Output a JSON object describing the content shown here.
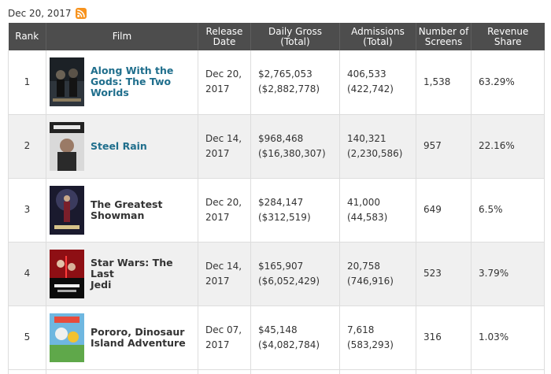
{
  "header": {
    "date": "Dec 20, 2017"
  },
  "icons": {
    "rss": "rss-feed-icon"
  },
  "colors": {
    "header_bg": "#4d4d4d",
    "link": "#1f6e8c",
    "rss": "#f7931e",
    "alt_row": "#f0f0f0"
  },
  "table": {
    "columns": [
      "Rank",
      "Film",
      "Release Date",
      "Daily Gross (Total)",
      "Admissions (Total)",
      "Number of Screens",
      "Revenue Share"
    ],
    "column_lines": {
      "release": [
        "Release",
        "Date"
      ],
      "gross": [
        "Daily Gross",
        "(Total)"
      ],
      "admissions": [
        "Admissions",
        "(Total)"
      ],
      "screens": [
        "Number of",
        "Screens"
      ],
      "share": [
        "Revenue",
        "Share"
      ]
    },
    "rows": [
      {
        "rank": "1",
        "title_lines": [
          "Along With the",
          "Gods: The Two",
          "Worlds"
        ],
        "linked": true,
        "release_lines": [
          "Dec 20,",
          "2017"
        ],
        "gross": "$2,765,053",
        "gross_total": "($2,882,778)",
        "admissions": "406,533",
        "admissions_total": "(422,742)",
        "screens": "1,538",
        "share": "63.29%"
      },
      {
        "rank": "2",
        "title_lines": [
          "Steel Rain"
        ],
        "linked": true,
        "release_lines": [
          "Dec 14,",
          "2017"
        ],
        "gross": "$968,468",
        "gross_total": "($16,380,307)",
        "admissions": "140,321",
        "admissions_total": "(2,230,586)",
        "screens": "957",
        "share": "22.16%"
      },
      {
        "rank": "3",
        "title_lines": [
          "The Greatest",
          "Showman"
        ],
        "linked": false,
        "release_lines": [
          "Dec 20,",
          "2017"
        ],
        "gross": "$284,147",
        "gross_total": "($312,519)",
        "admissions": "41,000",
        "admissions_total": "(44,583)",
        "screens": "649",
        "share": "6.5%"
      },
      {
        "rank": "4",
        "title_lines": [
          "Star Wars: The Last",
          "Jedi"
        ],
        "linked": false,
        "release_lines": [
          "Dec 14,",
          "2017"
        ],
        "gross": "$165,907",
        "gross_total": "($6,052,429)",
        "admissions": "20,758",
        "admissions_total": "(746,916)",
        "screens": "523",
        "share": "3.79%"
      },
      {
        "rank": "5",
        "title_lines": [
          "Pororo, Dinosaur",
          "Island Adventure"
        ],
        "linked": false,
        "release_lines": [
          "Dec 07,",
          "2017"
        ],
        "gross": "$45,148",
        "gross_total": "($4,082,784)",
        "admissions": "7,618",
        "admissions_total": "(583,293)",
        "screens": "316",
        "share": "1.03%"
      }
    ]
  }
}
